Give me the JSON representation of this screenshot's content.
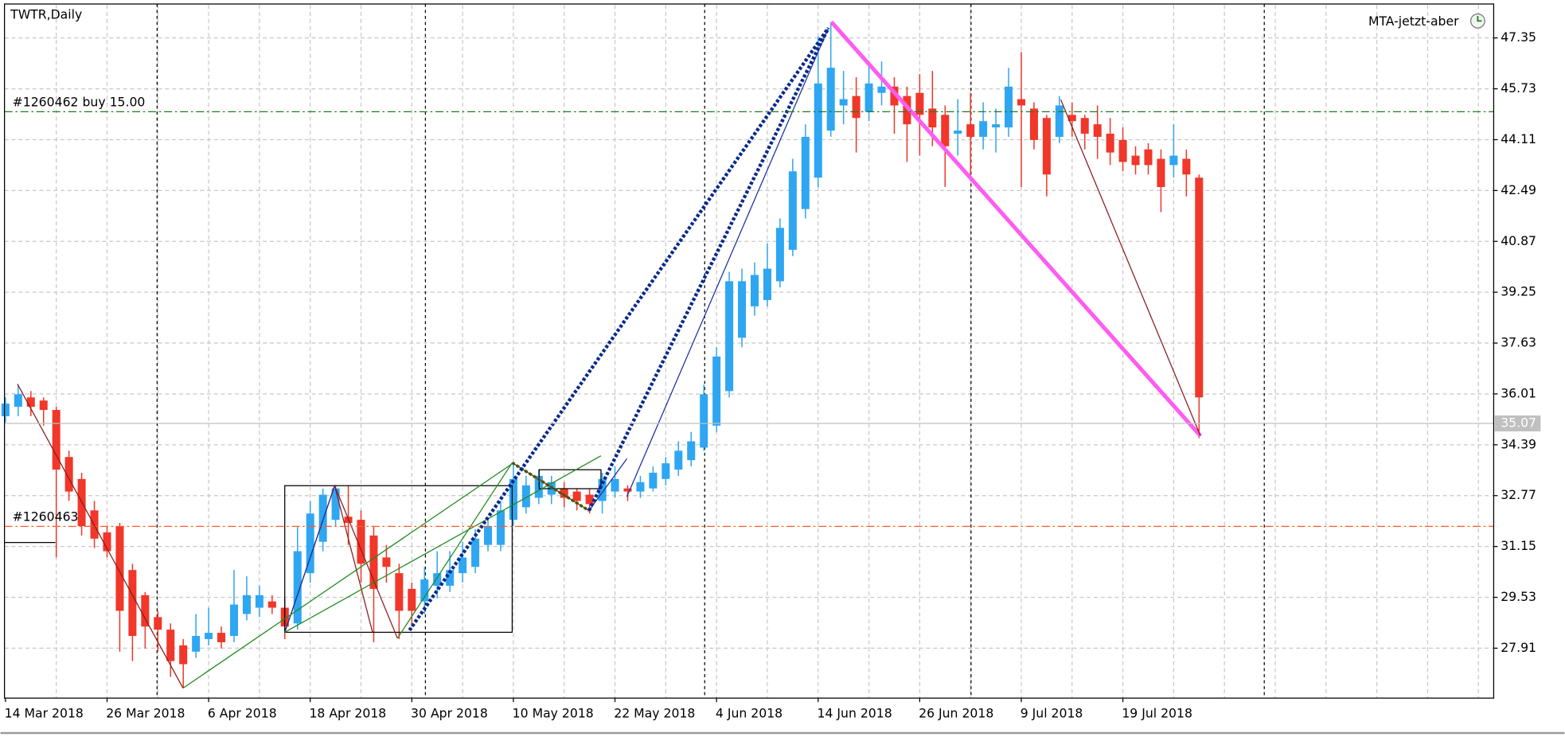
{
  "chart_data": {
    "type": "candlestick",
    "title": "TWTR,Daily",
    "indicator": "MTA-jetzt-aber",
    "categories": [
      "14 Mar 2018",
      null,
      null,
      null,
      null,
      null,
      null,
      null,
      "26 Mar 2018",
      null,
      null,
      null,
      null,
      null,
      null,
      null,
      "6 Apr 2018",
      null,
      null,
      null,
      null,
      null,
      null,
      null,
      "18 Apr 2018",
      null,
      null,
      null,
      null,
      null,
      null,
      null,
      "30 Apr 2018",
      null,
      null,
      null,
      null,
      null,
      null,
      null,
      "10 May 2018",
      null,
      null,
      null,
      null,
      null,
      null,
      null,
      "22 May 2018",
      null,
      null,
      null,
      null,
      null,
      null,
      null,
      "4 Jun 2018",
      null,
      null,
      null,
      null,
      null,
      null,
      null,
      "14 Jun 2018",
      null,
      null,
      null,
      null,
      null,
      null,
      null,
      "26 Jun 2018",
      null,
      null,
      null,
      null,
      null,
      null,
      null,
      "9 Jul 2018",
      null,
      null,
      null,
      null,
      null,
      null,
      null,
      "19 Jul 2018",
      null,
      null,
      null,
      null,
      null,
      null
    ],
    "open": [
      35.3,
      35.6,
      35.9,
      35.8,
      35.5,
      34.0,
      33.3,
      32.3,
      31.6,
      31.8,
      30.4,
      29.6,
      28.9,
      28.5,
      28.0,
      27.8,
      28.2,
      28.4,
      28.3,
      29.0,
      29.2,
      29.4,
      29.2,
      28.7,
      30.3,
      31.3,
      32.0,
      32.1,
      32.0,
      31.5,
      30.8,
      30.3,
      29.8,
      29.4,
      29.9,
      29.9,
      30.3,
      30.5,
      31.2,
      31.2,
      32.0,
      32.4,
      32.7,
      32.8,
      33.0,
      32.9,
      32.8,
      32.6,
      32.9,
      33.0,
      32.9,
      33.0,
      33.3,
      33.6,
      33.9,
      34.3,
      35.0,
      36.1,
      37.8,
      38.8,
      39.0,
      39.6,
      40.6,
      41.9,
      42.9,
      44.4,
      45.2,
      45.5,
      45.0,
      45.6,
      45.8,
      45.5,
      45.6,
      45.1,
      44.9,
      44.3,
      44.6,
      44.2,
      44.5,
      44.5,
      45.4,
      45.1,
      44.8,
      44.2,
      44.9,
      44.8,
      44.6,
      44.3,
      44.1,
      43.6,
      43.8,
      43.5,
      43.3,
      43.5,
      42.9
    ],
    "high": [
      35.9,
      36.3,
      36.1,
      35.9,
      35.6,
      34.2,
      33.5,
      32.6,
      31.8,
      31.9,
      30.6,
      29.7,
      29.1,
      28.7,
      28.2,
      29.0,
      29.2,
      28.6,
      30.4,
      30.2,
      29.9,
      29.6,
      29.5,
      31.8,
      32.6,
      33.0,
      33.09,
      33.1,
      32.3,
      31.8,
      31.2,
      30.6,
      30.0,
      30.5,
      31.0,
      31.0,
      31.3,
      31.7,
      32.0,
      32.6,
      33.8,
      33.4,
      33.6,
      33.4,
      33.2,
      33.0,
      33.0,
      33.5,
      33.7,
      33.1,
      33.4,
      33.7,
      34.0,
      34.5,
      34.8,
      36.3,
      37.5,
      39.9,
      40.0,
      40.2,
      40.8,
      41.6,
      43.5,
      44.6,
      47.4,
      47.86,
      46.3,
      46.1,
      46.6,
      46.6,
      46.1,
      45.8,
      46.2,
      46.3,
      45.2,
      45.4,
      45.6,
      45.3,
      45.1,
      46.4,
      46.9,
      45.3,
      44.9,
      45.5,
      45.3,
      44.9,
      45.2,
      44.8,
      44.5,
      43.9,
      44.0,
      43.8,
      44.6,
      43.8,
      43.0
    ],
    "low": [
      35.1,
      35.3,
      35.3,
      35.0,
      30.8,
      32.6,
      31.5,
      31.1,
      30.8,
      27.8,
      27.5,
      27.9,
      27.8,
      27.0,
      26.64,
      27.6,
      28.0,
      27.9,
      28.1,
      28.8,
      28.9,
      29.0,
      28.2,
      28.5,
      30.0,
      31.0,
      31.8,
      31.2,
      30.0,
      28.1,
      30.0,
      28.2,
      28.6,
      29.0,
      29.5,
      29.7,
      30.0,
      30.3,
      31.0,
      31.0,
      31.8,
      32.2,
      32.5,
      32.5,
      32.4,
      32.3,
      32.2,
      32.2,
      32.7,
      32.6,
      32.7,
      32.9,
      33.1,
      33.4,
      33.7,
      34.2,
      34.8,
      35.9,
      37.5,
      38.5,
      38.8,
      39.4,
      40.4,
      41.6,
      42.6,
      44.2,
      44.6,
      43.7,
      44.7,
      45.2,
      44.3,
      43.4,
      43.6,
      43.9,
      42.6,
      43.6,
      42.8,
      43.8,
      43.7,
      44.2,
      42.6,
      43.8,
      42.3,
      44.0,
      44.2,
      43.8,
      43.5,
      43.3,
      43.1,
      43.0,
      43.0,
      41.8,
      42.9,
      42.3,
      34.6
    ],
    "close": [
      35.7,
      36.0,
      35.6,
      35.5,
      33.6,
      32.9,
      31.8,
      31.4,
      31.0,
      29.1,
      28.3,
      28.6,
      28.5,
      27.5,
      27.4,
      28.3,
      28.4,
      28.1,
      29.3,
      29.6,
      29.6,
      29.2,
      28.6,
      31.0,
      32.2,
      32.8,
      33.0,
      31.9,
      30.6,
      29.8,
      30.5,
      29.1,
      29.1,
      30.1,
      30.3,
      30.4,
      30.8,
      31.4,
      31.8,
      32.3,
      33.3,
      33.1,
      33.4,
      33.2,
      32.7,
      32.6,
      32.5,
      33.3,
      33.3,
      32.9,
      33.2,
      33.5,
      33.8,
      34.2,
      34.5,
      36.0,
      37.2,
      39.6,
      39.6,
      39.8,
      40.0,
      41.3,
      43.1,
      44.2,
      45.9,
      46.4,
      45.4,
      44.8,
      45.9,
      45.8,
      45.2,
      44.6,
      44.9,
      44.5,
      43.9,
      44.4,
      44.2,
      44.7,
      44.6,
      45.8,
      45.2,
      44.1,
      43.0,
      45.2,
      44.7,
      44.3,
      44.2,
      43.7,
      43.4,
      43.3,
      43.3,
      42.6,
      43.6,
      43.0,
      35.9
    ],
    "up_color": "#2fa6f2",
    "down_color": "#f0372a",
    "ylim": [
      26.32,
      48.4
    ],
    "yticks": [
      27.91,
      29.53,
      31.15,
      32.77,
      34.39,
      36.01,
      37.63,
      39.25,
      40.87,
      42.49,
      44.11,
      45.73,
      47.35
    ],
    "grid": true,
    "current_price": 35.07,
    "trade_lines": [
      {
        "label": "#1260462 buy 15.00",
        "value": 45.0,
        "color": "#1e7a1e"
      },
      {
        "label": "#1260463",
        "value": 31.79,
        "color": "#ff5a2a"
      }
    ]
  }
}
